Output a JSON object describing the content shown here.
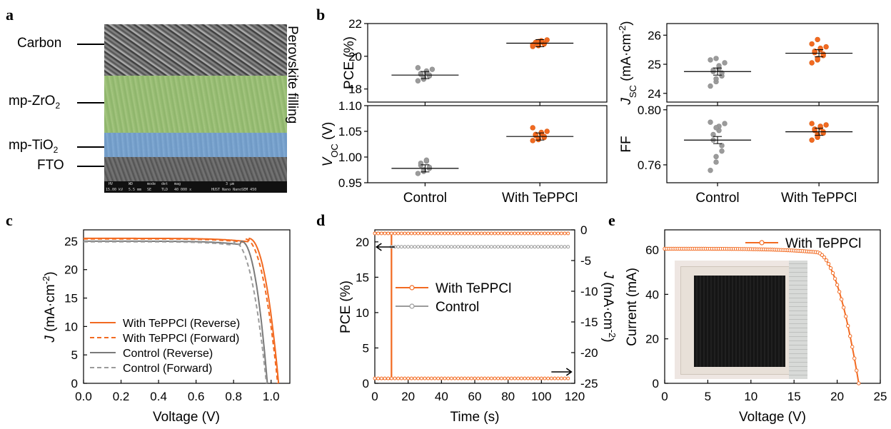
{
  "panels": {
    "a": "a",
    "b": "b",
    "c": "c",
    "d": "d",
    "e": "e"
  },
  "panel_a": {
    "left_labels": [
      "Carbon",
      "mp-ZrO",
      "mp-TiO",
      "FTO"
    ],
    "subscript_2": "2",
    "right_label": "Perovskite filling",
    "sem_info": [
      "HV",
      "WD",
      "mode",
      "det",
      "mag",
      "3 μm",
      "15.00 kV",
      "5.5 mm",
      "SE",
      "TLD",
      "40 000 x",
      "HUST Nano NanoSEM 450"
    ]
  },
  "colors": {
    "with": "#f26a21",
    "control": "#9b9b9b",
    "control_dark": "#7a7a7a",
    "zro2_overlay": "#9cc47a",
    "tio2_overlay": "#7fa7cf"
  },
  "chart_data": [
    {
      "id": "b-pce",
      "type": "scatter",
      "ylabel": "PCE (%)",
      "ylim": [
        17.2,
        22
      ],
      "yticks": [
        18,
        20,
        22
      ],
      "categories": [
        "Control",
        "With TePPCl"
      ],
      "series": [
        {
          "name": "Control",
          "mean": 18.85,
          "points": [
            18.5,
            18.6,
            18.7,
            18.8,
            18.85,
            18.9,
            18.95,
            19.0,
            19.1,
            19.2,
            19.3,
            18.65
          ]
        },
        {
          "name": "With TePPCl",
          "mean": 20.8,
          "points": [
            20.6,
            20.65,
            20.7,
            20.75,
            20.8,
            20.8,
            20.85,
            20.9,
            20.95,
            21.0,
            20.7,
            20.9
          ]
        }
      ]
    },
    {
      "id": "b-jsc",
      "type": "scatter",
      "ylabel": "J",
      "ylabel_sub": "SC",
      "ylabel_unit": " (mA·cm",
      "ylabel_sup": "-2",
      "ylabel_end": ")",
      "ylim": [
        23.7,
        26.4
      ],
      "yticks": [
        24,
        25,
        26
      ],
      "categories": [
        "Control",
        "With TePPCl"
      ],
      "series": [
        {
          "name": "Control",
          "mean": 24.75,
          "points": [
            24.25,
            24.4,
            24.5,
            24.6,
            24.7,
            24.75,
            24.8,
            24.85,
            24.95,
            25.05,
            25.15,
            25.2
          ]
        },
        {
          "name": "With TePPCl",
          "mean": 25.38,
          "points": [
            25.05,
            25.15,
            25.2,
            25.3,
            25.35,
            25.4,
            25.45,
            25.5,
            25.55,
            25.6,
            25.7,
            25.85
          ]
        }
      ]
    },
    {
      "id": "b-voc",
      "type": "scatter",
      "ylabel": "V",
      "ylabel_sub": "OC",
      "ylabel_unit": " (V)",
      "ylim": [
        0.95,
        1.1
      ],
      "yticks": [
        "0.95",
        "1.00",
        "1.05",
        "1.10"
      ],
      "ytick_values": [
        0.95,
        1.0,
        1.05,
        1.1
      ],
      "xlabel_ticks": [
        "Control",
        "With TePPCl"
      ],
      "categories": [
        "Control",
        "With TePPCl"
      ],
      "series": [
        {
          "name": "Control",
          "mean": 0.978,
          "points": [
            0.968,
            0.972,
            0.975,
            0.978,
            0.98,
            0.984,
            0.988,
            0.992,
            0.994
          ]
        },
        {
          "name": "With TePPCl",
          "mean": 1.04,
          "points": [
            1.032,
            1.034,
            1.036,
            1.038,
            1.04,
            1.042,
            1.044,
            1.046,
            1.048,
            1.05,
            1.057,
            1.036
          ]
        }
      ]
    },
    {
      "id": "b-ff",
      "type": "scatter",
      "ylabel": "FF",
      "ylim": [
        0.747,
        0.803
      ],
      "yticks": [
        "0.76",
        "0.80"
      ],
      "ytick_values": [
        0.76,
        0.8
      ],
      "xlabel_ticks": [
        "Control",
        "With TePPCl"
      ],
      "categories": [
        "Control",
        "With TePPCl"
      ],
      "series": [
        {
          "name": "Control",
          "mean": 0.778,
          "points": [
            0.756,
            0.762,
            0.766,
            0.77,
            0.774,
            0.778,
            0.782,
            0.785,
            0.788,
            0.79,
            0.791,
            0.787
          ]
        },
        {
          "name": "With TePPCl",
          "mean": 0.784,
          "points": [
            0.778,
            0.78,
            0.782,
            0.783,
            0.784,
            0.785,
            0.786,
            0.787,
            0.788,
            0.789,
            0.79,
            0.781
          ]
        }
      ]
    },
    {
      "id": "c-jv",
      "type": "line",
      "xlabel": "Voltage (V)",
      "ylabel": "J",
      "ylabel_unit": " (mA·cm",
      "ylabel_sup": "-2",
      "ylabel_end": ")",
      "xlim": [
        0,
        1.1
      ],
      "ylim": [
        0,
        27
      ],
      "xticks": [
        "0.0",
        "0.2",
        "0.4",
        "0.6",
        "0.8",
        "1.0"
      ],
      "xtick_values": [
        0,
        0.2,
        0.4,
        0.6,
        0.8,
        1.0
      ],
      "yticks": [
        0,
        5,
        10,
        15,
        20,
        25
      ],
      "series": [
        {
          "name": "With TePPCl (Reverse)",
          "style": "solid",
          "color": "#f26a21",
          "jsc": 25.5,
          "voc": 1.04,
          "knee": 0.88
        },
        {
          "name": "With TePPCl (Forward)",
          "style": "dashed",
          "color": "#f26a21",
          "jsc": 25.4,
          "voc": 1.035,
          "knee": 0.86
        },
        {
          "name": "Control (Reverse)",
          "style": "solid",
          "color": "#7a7a7a",
          "jsc": 25.0,
          "voc": 0.98,
          "knee": 0.84
        },
        {
          "name": "Control (Forward)",
          "style": "dashed",
          "color": "#9b9b9b",
          "jsc": 24.9,
          "voc": 0.975,
          "knee": 0.8
        }
      ]
    },
    {
      "id": "d-mpp",
      "type": "line",
      "xlabel": "Time (s)",
      "ylabel": "PCE (%)",
      "y2label": "J",
      "y2label_unit": " (mA·cm",
      "y2label_sup": "-2",
      "y2label_end": ")",
      "xlim": [
        0,
        120
      ],
      "ylim": [
        0,
        21.7
      ],
      "y2lim": [
        -25,
        0
      ],
      "xticks": [
        0,
        20,
        40,
        60,
        80,
        100,
        120
      ],
      "yticks": [
        0,
        5,
        10,
        15,
        20
      ],
      "y2ticks": [
        "0",
        "-5",
        "-10",
        "-15",
        "-20",
        "-25"
      ],
      "y2tick_values": [
        0,
        -5,
        -10,
        -15,
        -20,
        -25
      ],
      "series": [
        {
          "name": "With TePPCl",
          "color": "#f26a21",
          "pce_before": 0.6,
          "pce_after": 21.2,
          "step_time": 10,
          "j_before": -0.5,
          "j_after": -24.2,
          "end_time": 117
        },
        {
          "name": "Control",
          "color": "#9b9b9b",
          "pce_after": 19.3,
          "step_time": 10,
          "end_time": 117
        }
      ]
    },
    {
      "id": "e-iv",
      "type": "line",
      "xlabel": "Voltage (V)",
      "ylabel": "Current (mA)",
      "xlim": [
        0,
        25
      ],
      "ylim": [
        0,
        69
      ],
      "xticks": [
        0,
        5,
        10,
        15,
        20,
        25
      ],
      "yticks": [
        0,
        20,
        40,
        60
      ],
      "series": [
        {
          "name": "With TePPCl",
          "color": "#f26a21",
          "isc": 60.5,
          "voc": 22.5,
          "knee": 17.5
        }
      ]
    }
  ]
}
